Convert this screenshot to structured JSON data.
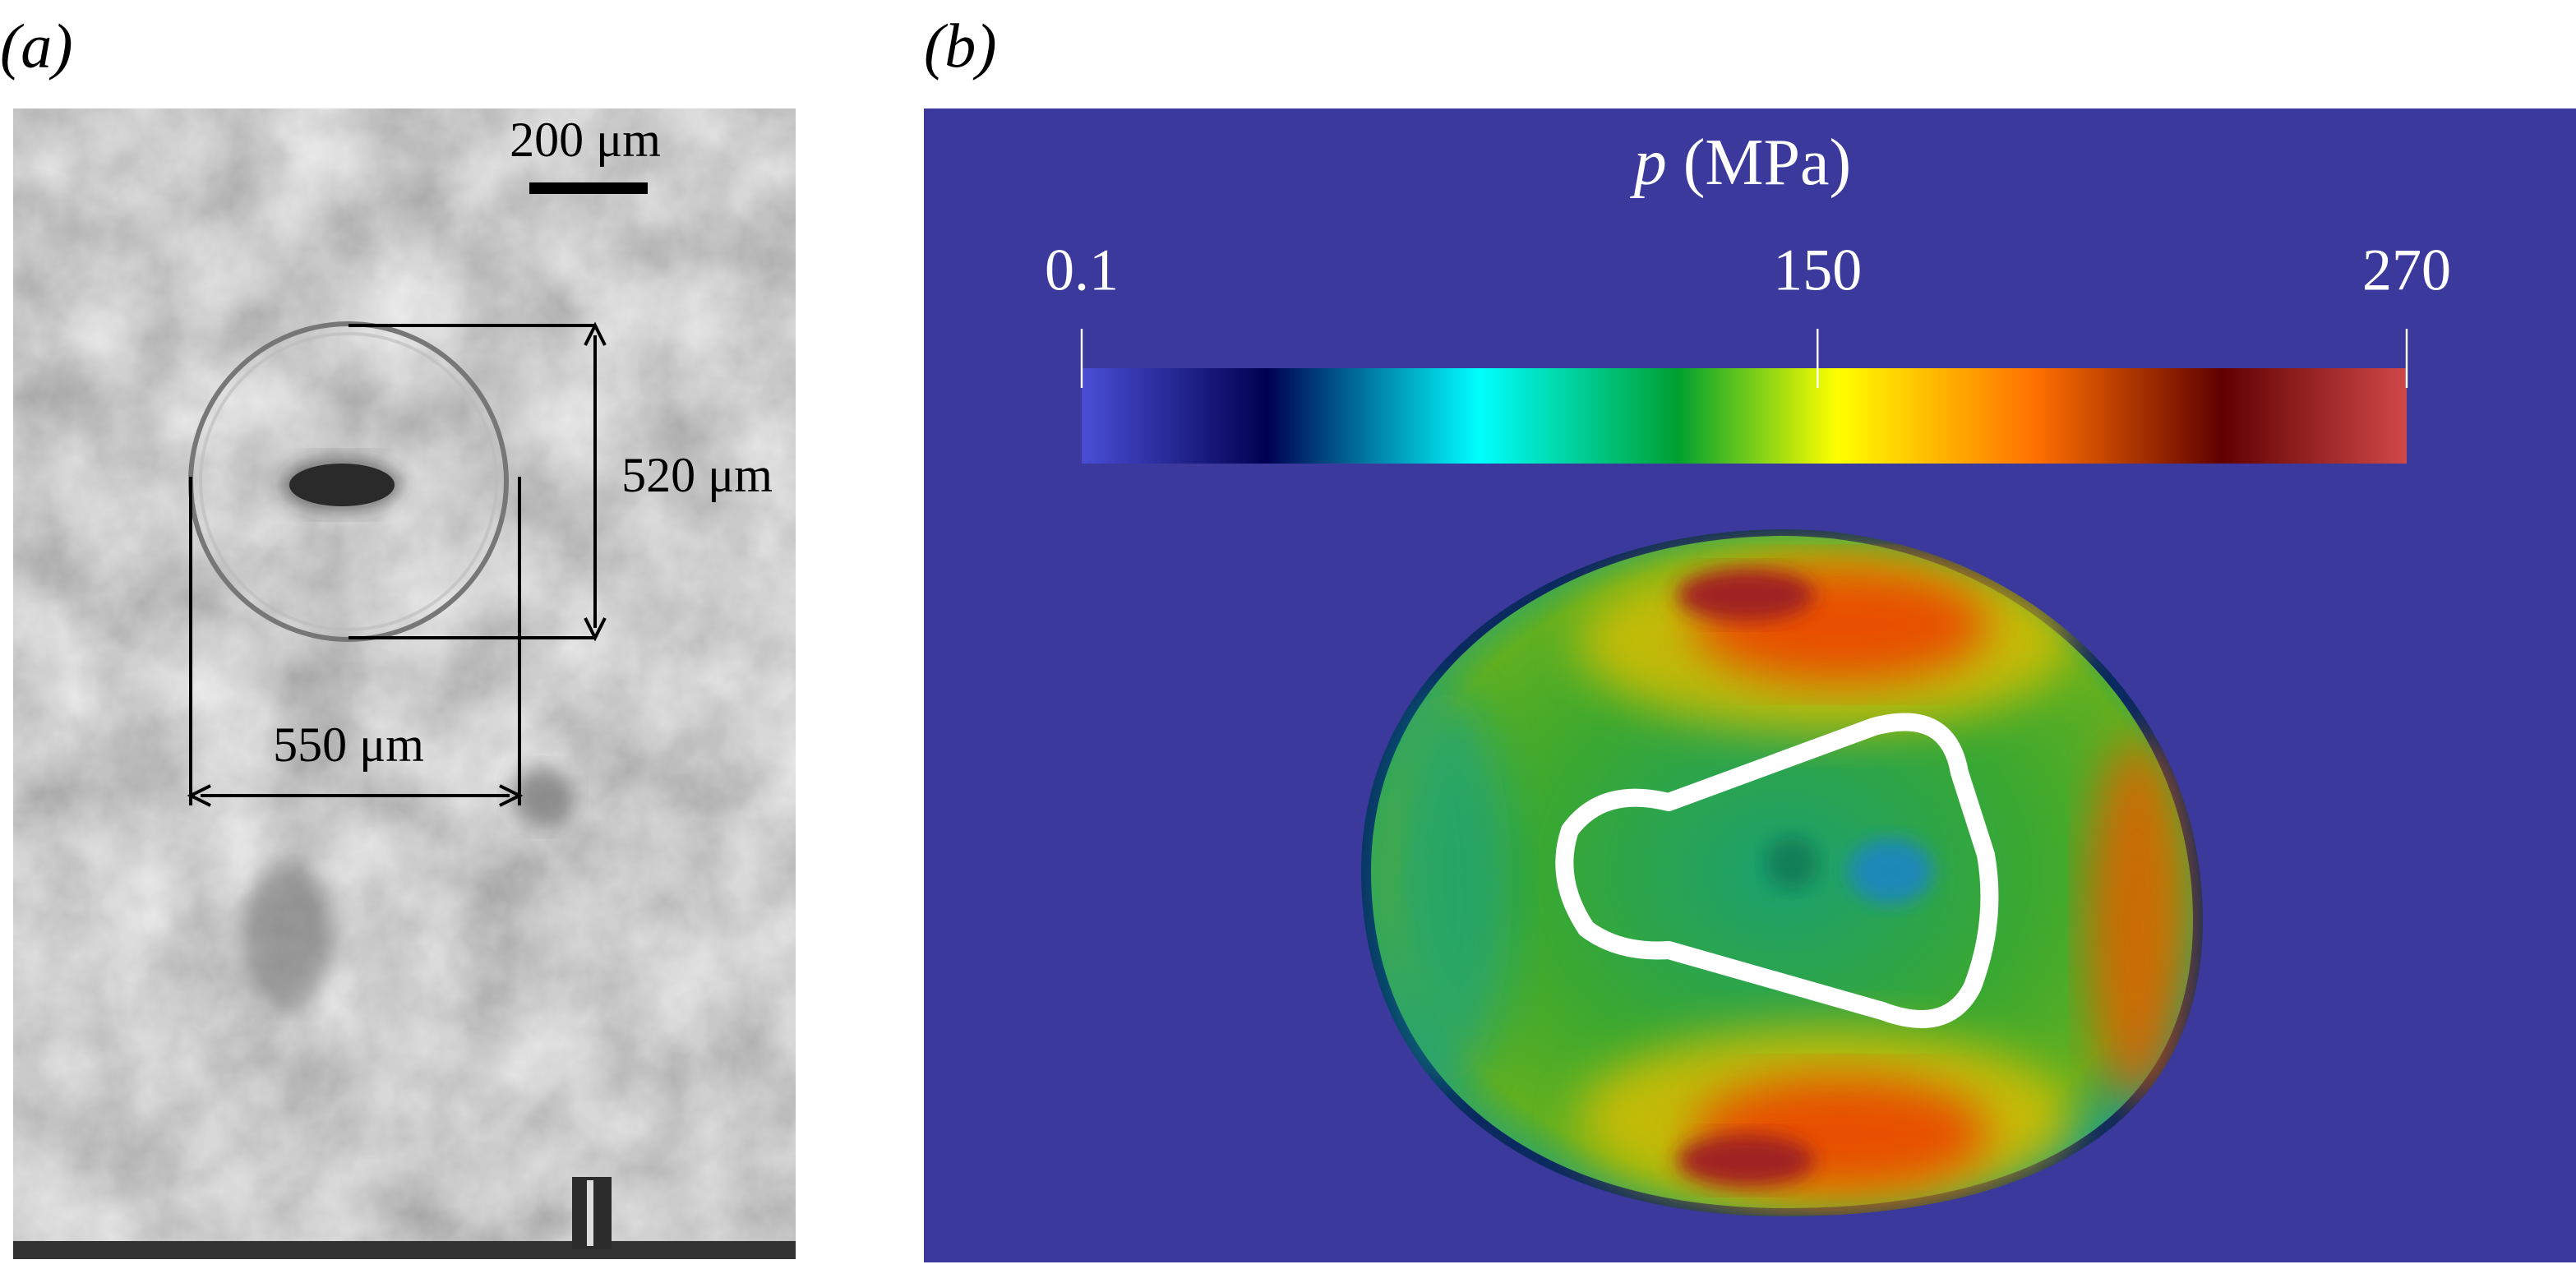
{
  "panels": [
    {
      "label": "(a)",
      "scale_bar": "200 μm",
      "height_label": "520 μm",
      "width_label": "550 μm"
    },
    {
      "label": "(b)",
      "colorbar": {
        "symbol": "p",
        "unit": "(MPa)",
        "lim": [
          0.1,
          270
        ],
        "ticks": [
          0.1,
          150,
          270
        ]
      }
    }
  ]
}
